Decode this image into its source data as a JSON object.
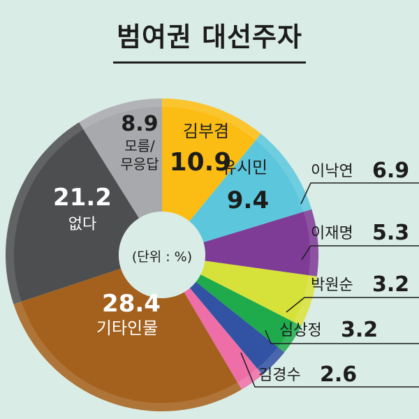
{
  "title": "범여권 대선주자",
  "chart_data": {
    "type": "pie",
    "title": "범여권 대선주자",
    "center_label": "(단위 : %)",
    "donut": true,
    "slices": [
      {
        "label": "김부겸",
        "value": 10.9,
        "color": "#fbbd14"
      },
      {
        "label": "유시민",
        "value": 9.4,
        "color": "#5cc7dc"
      },
      {
        "label": "이낙연",
        "value": 6.9,
        "color": "#7e3c96"
      },
      {
        "label": "이재명",
        "value": 5.3,
        "color": "#d6e23a"
      },
      {
        "label": "박원순",
        "value": 3.2,
        "color": "#1fab4c"
      },
      {
        "label": "심상정",
        "value": 3.2,
        "color": "#3253a3"
      },
      {
        "label": "김경수",
        "value": 2.6,
        "color": "#ee6ea8"
      },
      {
        "label": "기타인물",
        "value": 28.4,
        "color": "#a4611d"
      },
      {
        "label": "없다",
        "value": 21.2,
        "color": "#4d4e50"
      },
      {
        "label": "모름/무응답",
        "value": 8.9,
        "color": "#a8a9ac"
      }
    ]
  }
}
